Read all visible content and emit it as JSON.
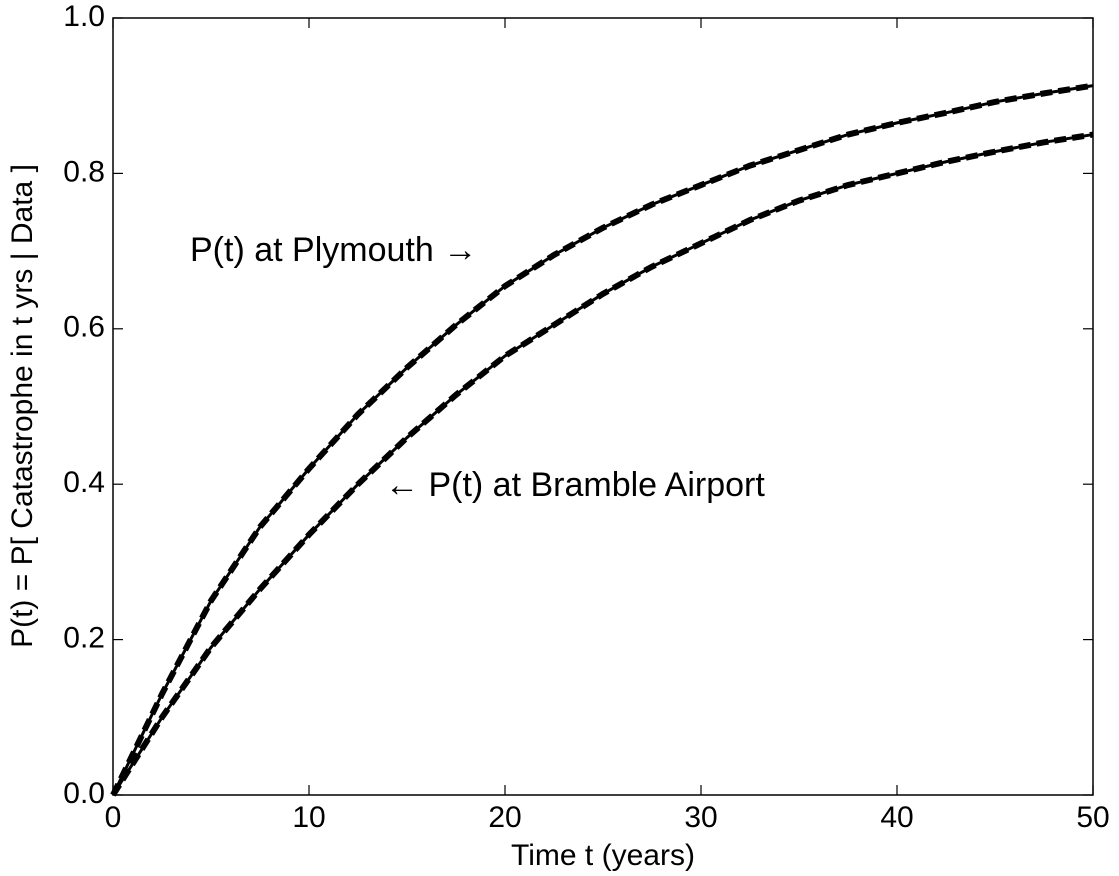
{
  "chart_data": {
    "type": "line",
    "xlabel": "Time t (years)",
    "ylabel": "P(t) = P[ Catastrophe in t yrs | Data ]",
    "x": [
      0,
      2.5,
      5,
      7.5,
      10,
      12.5,
      15,
      17.5,
      20,
      22.5,
      25,
      27.5,
      30,
      32.5,
      35,
      37.5,
      40,
      42.5,
      45,
      47.5,
      50
    ],
    "series": [
      {
        "name": "P(t) at Plymouth",
        "color": "#000000",
        "values": [
          0,
          0.13,
          0.25,
          0.345,
          0.42,
          0.49,
          0.55,
          0.605,
          0.655,
          0.695,
          0.73,
          0.76,
          0.785,
          0.81,
          0.83,
          0.85,
          0.865,
          0.878,
          0.892,
          0.903,
          0.913
        ]
      },
      {
        "name": "P(t) at Bramble Airport",
        "color": "#000000",
        "values": [
          0,
          0.1,
          0.19,
          0.265,
          0.335,
          0.4,
          0.46,
          0.515,
          0.565,
          0.605,
          0.645,
          0.68,
          0.71,
          0.74,
          0.765,
          0.785,
          0.8,
          0.815,
          0.828,
          0.84,
          0.85
        ]
      }
    ],
    "annotations": [
      "P(t) at Plymouth →",
      "← P(t) at Bramble Airport"
    ],
    "xlim": [
      0,
      50
    ],
    "ylim": [
      0,
      1
    ],
    "xticks": [
      0,
      10,
      20,
      30,
      40,
      50
    ],
    "yticks": [
      {
        "value": 0,
        "label": "0.0"
      },
      0.2,
      0.4,
      0.6,
      0.8,
      {
        "value": 1,
        "label": "1.0"
      }
    ]
  }
}
